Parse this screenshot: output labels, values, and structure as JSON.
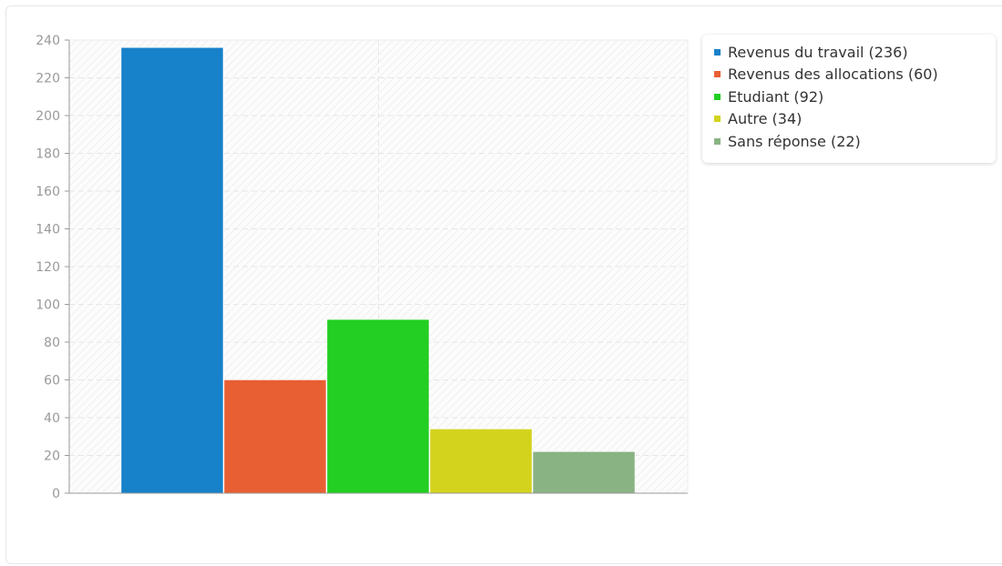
{
  "chart_data": {
    "type": "bar",
    "categories": [
      "Revenus du travail",
      "Revenus des allocations",
      "Etudiant",
      "Autre",
      "Sans réponse"
    ],
    "values": [
      236,
      60,
      92,
      34,
      22
    ],
    "colors": [
      "#1781c9",
      "#e85f33",
      "#22cf22",
      "#d3d31e",
      "#8ab384"
    ],
    "yticks": [
      0,
      20,
      40,
      60,
      80,
      100,
      120,
      140,
      160,
      180,
      200,
      220,
      240
    ],
    "ylim": [
      0,
      240
    ],
    "grid": true,
    "legend_position": "right",
    "legend": [
      "Revenus du travail (236)",
      "Revenus des allocations (60)",
      "Etudiant (92)",
      "Autre (34)",
      "Sans réponse (22)"
    ]
  }
}
